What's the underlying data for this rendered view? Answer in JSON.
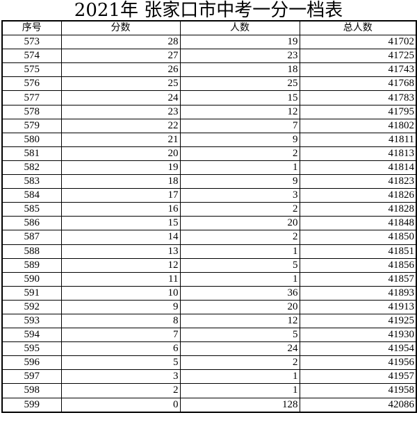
{
  "title": "2021年  张家口市中考一分一档表",
  "table": {
    "headers": [
      "序号",
      "分数",
      "人数",
      "总人数"
    ],
    "rows": [
      [
        "573",
        "28",
        "19",
        "41702"
      ],
      [
        "574",
        "27",
        "23",
        "41725"
      ],
      [
        "575",
        "26",
        "18",
        "41743"
      ],
      [
        "576",
        "25",
        "25",
        "41768"
      ],
      [
        "577",
        "24",
        "15",
        "41783"
      ],
      [
        "578",
        "23",
        "12",
        "41795"
      ],
      [
        "579",
        "22",
        "7",
        "41802"
      ],
      [
        "580",
        "21",
        "9",
        "41811"
      ],
      [
        "581",
        "20",
        "2",
        "41813"
      ],
      [
        "582",
        "19",
        "1",
        "41814"
      ],
      [
        "583",
        "18",
        "9",
        "41823"
      ],
      [
        "584",
        "17",
        "3",
        "41826"
      ],
      [
        "585",
        "16",
        "2",
        "41828"
      ],
      [
        "586",
        "15",
        "20",
        "41848"
      ],
      [
        "587",
        "14",
        "2",
        "41850"
      ],
      [
        "588",
        "13",
        "1",
        "41851"
      ],
      [
        "589",
        "12",
        "5",
        "41856"
      ],
      [
        "590",
        "11",
        "1",
        "41857"
      ],
      [
        "591",
        "10",
        "36",
        "41893"
      ],
      [
        "592",
        "9",
        "20",
        "41913"
      ],
      [
        "593",
        "8",
        "12",
        "41925"
      ],
      [
        "594",
        "7",
        "5",
        "41930"
      ],
      [
        "595",
        "6",
        "24",
        "41954"
      ],
      [
        "596",
        "5",
        "2",
        "41956"
      ],
      [
        "597",
        "3",
        "1",
        "41957"
      ],
      [
        "598",
        "2",
        "1",
        "41958"
      ],
      [
        "599",
        "0",
        "128",
        "42086"
      ]
    ]
  }
}
